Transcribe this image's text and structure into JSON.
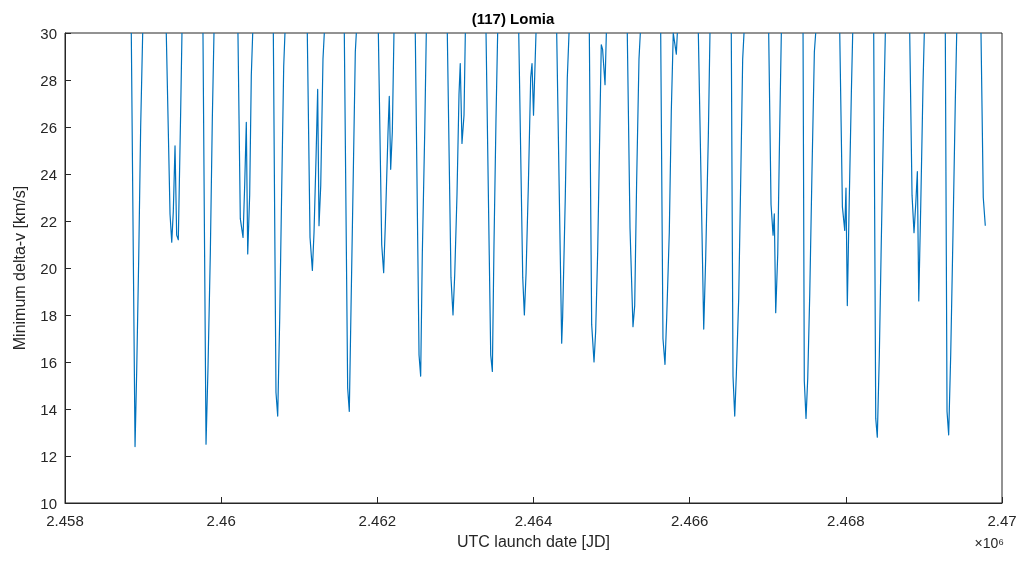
{
  "chart_data": {
    "type": "line",
    "title": "(117) Lomia",
    "xlabel": "UTC launch date [JD]",
    "ylabel": "Minimum delta-v [km/s]",
    "annotations": [
      "×10⁶"
    ],
    "series": [
      {
        "color": "#0072bd",
        "x": [
          2.458849,
          2.458897,
          2.458918,
          2.458944,
          2.458969,
          2.458995,
          2.4591,
          2.459297,
          2.459345,
          2.459367,
          2.459387,
          2.459409,
          2.45943,
          2.459451,
          2.459481,
          2.459498,
          2.4596,
          2.459767,
          2.459806,
          2.459831,
          2.459861,
          2.459887,
          2.459908,
          2.46,
          2.460215,
          2.460245,
          2.46028,
          2.460301,
          2.460322,
          2.46034,
          2.460365,
          2.460386,
          2.460404,
          2.4605,
          2.460668,
          2.460702,
          2.460724,
          2.46075,
          2.460775,
          2.460801,
          2.460817,
          2.46095,
          2.461103,
          2.461138,
          2.461168,
          2.461189,
          2.461215,
          2.461236,
          2.461253,
          2.461275,
          2.461304,
          2.461321,
          2.46145,
          2.461577,
          2.46162,
          2.461641,
          2.461663,
          2.461692,
          2.461718,
          2.461731,
          2.46185,
          2.462013,
          2.462056,
          2.462081,
          2.462102,
          2.462137,
          2.462153,
          2.462171,
          2.462192,
          2.462213,
          2.46235,
          2.462486,
          2.462534,
          2.462555,
          2.462576,
          2.462607,
          2.462627,
          2.46275,
          2.462896,
          2.462943,
          2.462969,
          2.462991,
          2.46302,
          2.463046,
          2.463062,
          2.463084,
          2.46311,
          2.463127,
          2.46325,
          2.463392,
          2.463452,
          2.463473,
          2.463494,
          2.46352,
          2.463541,
          2.46365,
          2.463811,
          2.463862,
          2.463883,
          2.463905,
          2.463934,
          2.463964,
          2.463981,
          2.464,
          2.464032,
          2.46415,
          2.464297,
          2.464361,
          2.464373,
          2.464407,
          2.464433,
          2.464455,
          2.4646,
          2.464715,
          2.464745,
          2.464775,
          2.464796,
          2.464822,
          2.464848,
          2.464868,
          2.464885,
          2.464916,
          2.464933,
          2.46505,
          2.465201,
          2.465236,
          2.465274,
          2.465296,
          2.465321,
          2.465351,
          2.465368,
          2.4655,
          2.465629,
          2.465658,
          2.465684,
          2.465706,
          2.465739,
          2.465765,
          2.46579,
          2.465829,
          2.465842,
          2.466,
          2.466111,
          2.466158,
          2.46618,
          2.466205,
          2.466239,
          2.46626,
          2.4664,
          2.466533,
          2.466555,
          2.466577,
          2.466597,
          2.466628,
          2.466654,
          2.466679,
          2.466696,
          2.46685,
          2.467012,
          2.467042,
          2.467068,
          2.467084,
          2.467102,
          2.467128,
          2.467153,
          2.467174,
          2.4673,
          2.467452,
          2.467468,
          2.46749,
          2.467512,
          2.467538,
          2.467567,
          2.467597,
          2.467614,
          2.46775,
          2.467922,
          2.467956,
          2.467986,
          2.468002,
          2.468019,
          2.468041,
          2.468071,
          2.468088,
          2.4682,
          2.468357,
          2.468383,
          2.468403,
          2.468429,
          2.468454,
          2.468485,
          2.468506,
          2.46865,
          2.468818,
          2.468848,
          2.468873,
          2.468895,
          2.468916,
          2.468934,
          2.468959,
          2.468989,
          2.469005,
          2.46915,
          2.469274,
          2.469296,
          2.469317,
          2.469343,
          2.469372,
          2.469402,
          2.46942,
          2.4696,
          2.469731,
          2.46976,
          2.469786
        ],
        "values": [
          30,
          12.4,
          15.6,
          20.4,
          26.0,
          30,
          null,
          30,
          22.3,
          21.1,
          22.4,
          25.2,
          21.4,
          21.2,
          26.6,
          30,
          null,
          30,
          12.5,
          15.7,
          20.6,
          26.4,
          30,
          null,
          30,
          22.1,
          21.3,
          23.5,
          26.2,
          20.6,
          23.1,
          28.2,
          30,
          null,
          30,
          14.7,
          13.7,
          17.9,
          23.3,
          28.6,
          30,
          null,
          30,
          21.3,
          19.9,
          21.5,
          24.7,
          27.6,
          21.8,
          23.5,
          28.9,
          30,
          null,
          30,
          14.9,
          13.9,
          18.3,
          24.0,
          29.2,
          30,
          null,
          30,
          21.0,
          19.8,
          21.8,
          25.8,
          27.3,
          24.2,
          25.8,
          30,
          null,
          30,
          16.3,
          15.4,
          20.6,
          25.8,
          30,
          null,
          30,
          19.6,
          18.0,
          19.7,
          23.1,
          27.4,
          28.7,
          25.3,
          26.5,
          30,
          null,
          30,
          16.3,
          15.6,
          21.0,
          26.4,
          30,
          null,
          30,
          19.6,
          18.0,
          19.8,
          23.5,
          28.1,
          28.7,
          26.5,
          30,
          null,
          30,
          16.8,
          17.9,
          23.0,
          28.1,
          30,
          null,
          30,
          17.6,
          16.0,
          17.3,
          20.7,
          25.7,
          29.5,
          29.3,
          27.8,
          30,
          null,
          30,
          21.7,
          17.5,
          18.4,
          23.7,
          28.9,
          30,
          null,
          30,
          17.0,
          15.9,
          17.9,
          21.5,
          26.7,
          30,
          29.1,
          30,
          null,
          30,
          21.5,
          17.4,
          20.4,
          25.6,
          30,
          null,
          30,
          15.4,
          13.7,
          15.4,
          18.7,
          23.8,
          28.9,
          30,
          null,
          30,
          22.7,
          21.4,
          22.3,
          18.1,
          20.6,
          25.9,
          30,
          null,
          30,
          15.2,
          13.6,
          15.3,
          18.9,
          24.2,
          29.2,
          30,
          null,
          30,
          22.6,
          21.6,
          23.4,
          18.4,
          22.4,
          27.5,
          30,
          null,
          30,
          13.6,
          12.8,
          16.3,
          21.1,
          26.6,
          30,
          null,
          30,
          23.1,
          21.5,
          22.7,
          24.1,
          18.6,
          22.6,
          27.9,
          30,
          null,
          30,
          13.9,
          12.9,
          16.3,
          21.4,
          27.1,
          30,
          null,
          30,
          23.0,
          21.8
        ]
      }
    ],
    "xlim": [
      2.458,
      2.47
    ],
    "xticks": [
      2.458,
      2.46,
      2.462,
      2.464,
      2.466,
      2.468,
      2.47
    ],
    "ylim": [
      10,
      30
    ],
    "yticks": [
      10,
      12,
      14,
      16,
      18,
      20,
      22,
      24,
      26,
      28,
      30
    ],
    "grid": false,
    "marker": "none",
    "line_style": "solid"
  }
}
